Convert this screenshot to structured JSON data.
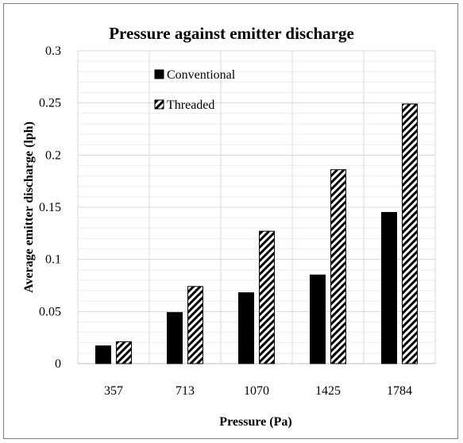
{
  "chart_data": {
    "type": "bar",
    "title": "Pressure against emitter discharge",
    "xlabel": "Pressure (Pa)",
    "ylabel": "Average emitter  discharge (lph)",
    "categories": [
      "357",
      "713",
      "1070",
      "1425",
      "1784"
    ],
    "series": [
      {
        "name": "Conventional",
        "values": [
          0.017,
          0.049,
          0.068,
          0.085,
          0.145
        ],
        "color": "#000000",
        "pattern": "solid"
      },
      {
        "name": "Threaded",
        "values": [
          0.021,
          0.074,
          0.127,
          0.186,
          0.249
        ],
        "color": "#000000",
        "pattern": "diagonal-hatch"
      }
    ],
    "ylim": [
      0,
      0.3
    ],
    "yticks": [
      "0",
      "0.05",
      "0.1",
      "0.15",
      "0.2",
      "0.25",
      "0.3"
    ],
    "grid": true,
    "legend_position": "top-left"
  }
}
